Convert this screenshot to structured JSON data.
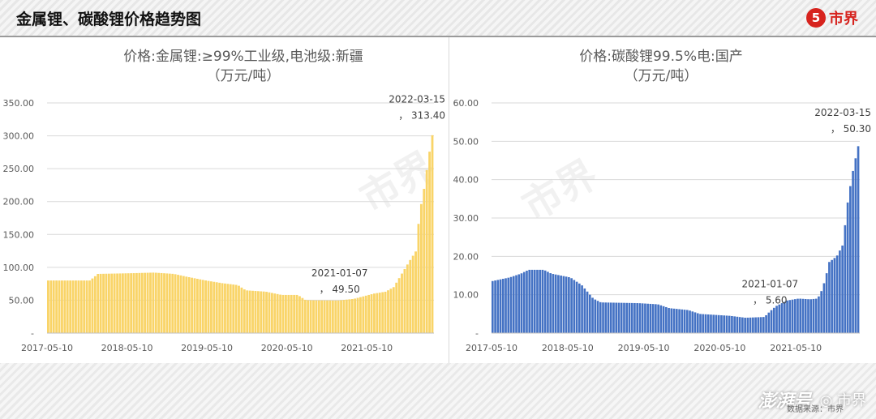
{
  "header": {
    "title": "金属锂、碳酸锂价格趋势图",
    "logo_text": "市界",
    "logo_glyph": "5"
  },
  "watermark_text": "市界",
  "charts": [
    {
      "id": "left",
      "title": "价格:金属锂:≥99%工业级,电池级:新疆",
      "subtitle": "（万元/吨）"
    },
    {
      "id": "right",
      "title": "价格:碳酸锂99.5%电:国产",
      "subtitle": "（万元/吨）"
    }
  ],
  "footer": {
    "brand": "澎湃号",
    "account": "◎ 市界",
    "source_label": "数据来源：市界"
  },
  "chart_data": [
    {
      "type": "bar",
      "title": "价格:金属锂:≥99%工业级,电池级:新疆",
      "subtitle": "（万元/吨）",
      "color": "#f9d468",
      "ylim": [
        0,
        350
      ],
      "yticks": [
        "350.00",
        "300.00",
        "250.00",
        "200.00",
        "150.00",
        "100.00",
        "50.00",
        "-"
      ],
      "ytick_values": [
        350,
        300,
        250,
        200,
        150,
        100,
        50,
        0
      ],
      "xticks": [
        "2017-05-10",
        "2018-05-10",
        "2019-05-10",
        "2020-05-10",
        "2021-05-10"
      ],
      "xlim": [
        2017.36,
        2022.2
      ],
      "xtick_positions": [
        2017.36,
        2018.36,
        2019.36,
        2020.36,
        2021.36
      ],
      "grid": true,
      "annotations": [
        {
          "date": "2021-01-07",
          "value_label": "，  49.50",
          "x": 2021.02,
          "y": 49.5
        },
        {
          "date": "2022-03-15",
          "value_label": "，  313.40",
          "x": 2022.2,
          "y": 313.4
        }
      ],
      "series": [
        {
          "name": "金属锂",
          "points": [
            [
              2017.36,
              80
            ],
            [
              2017.9,
              80
            ],
            [
              2018.0,
              90
            ],
            [
              2018.4,
              91
            ],
            [
              2018.7,
              92
            ],
            [
              2018.95,
              90
            ],
            [
              2019.1,
              86
            ],
            [
              2019.35,
              80
            ],
            [
              2019.55,
              76
            ],
            [
              2019.75,
              73
            ],
            [
              2019.85,
              65
            ],
            [
              2020.1,
              63
            ],
            [
              2020.3,
              58
            ],
            [
              2020.5,
              58
            ],
            [
              2020.6,
              50
            ],
            [
              2021.0,
              49.5
            ],
            [
              2021.2,
              52
            ],
            [
              2021.45,
              60
            ],
            [
              2021.6,
              63
            ],
            [
              2021.7,
              70
            ],
            [
              2021.8,
              90
            ],
            [
              2021.9,
              110
            ],
            [
              2021.98,
              125
            ],
            [
              2022.02,
              180
            ],
            [
              2022.08,
              220
            ],
            [
              2022.14,
              270
            ],
            [
              2022.2,
              313.4
            ]
          ]
        }
      ]
    },
    {
      "type": "bar",
      "title": "价格:碳酸锂99.5%电:国产",
      "subtitle": "（万元/吨）",
      "color": "#4472c4",
      "ylim": [
        0,
        60
      ],
      "yticks": [
        "60.00",
        "50.00",
        "40.00",
        "30.00",
        "20.00",
        "10.00",
        "-"
      ],
      "ytick_values": [
        60,
        50,
        40,
        30,
        20,
        10,
        0
      ],
      "xticks": [
        "2017-05-10",
        "2018-05-10",
        "2019-05-10",
        "2020-05-10",
        "2021-05-10"
      ],
      "xlim": [
        2017.36,
        2022.2
      ],
      "xtick_positions": [
        2017.36,
        2018.36,
        2019.36,
        2020.36,
        2021.36
      ],
      "grid": true,
      "annotations": [
        {
          "date": "2021-01-07",
          "value_label": "，  5.60",
          "x": 2021.02,
          "y": 5.6
        },
        {
          "date": "2022-03-15",
          "value_label": "，  50.30",
          "x": 2022.2,
          "y": 50.3
        }
      ],
      "series": [
        {
          "name": "碳酸锂",
          "points": [
            [
              2017.36,
              13.5
            ],
            [
              2017.6,
              14.5
            ],
            [
              2017.75,
              15.5
            ],
            [
              2017.85,
              16.5
            ],
            [
              2018.05,
              16.5
            ],
            [
              2018.15,
              15.5
            ],
            [
              2018.4,
              14.5
            ],
            [
              2018.55,
              12.5
            ],
            [
              2018.7,
              9
            ],
            [
              2018.8,
              8
            ],
            [
              2019.3,
              7.8
            ],
            [
              2019.55,
              7.5
            ],
            [
              2019.7,
              6.5
            ],
            [
              2019.95,
              6
            ],
            [
              2020.1,
              5
            ],
            [
              2020.5,
              4.5
            ],
            [
              2020.7,
              4
            ],
            [
              2020.95,
              4.2
            ],
            [
              2021.02,
              5.6
            ],
            [
              2021.1,
              7
            ],
            [
              2021.25,
              8.5
            ],
            [
              2021.4,
              9
            ],
            [
              2021.55,
              8.8
            ],
            [
              2021.65,
              9
            ],
            [
              2021.7,
              11
            ],
            [
              2021.75,
              14
            ],
            [
              2021.8,
              18.5
            ],
            [
              2021.9,
              20
            ],
            [
              2021.98,
              23
            ],
            [
              2022.05,
              35
            ],
            [
              2022.12,
              43
            ],
            [
              2022.2,
              50.3
            ]
          ]
        }
      ]
    }
  ]
}
